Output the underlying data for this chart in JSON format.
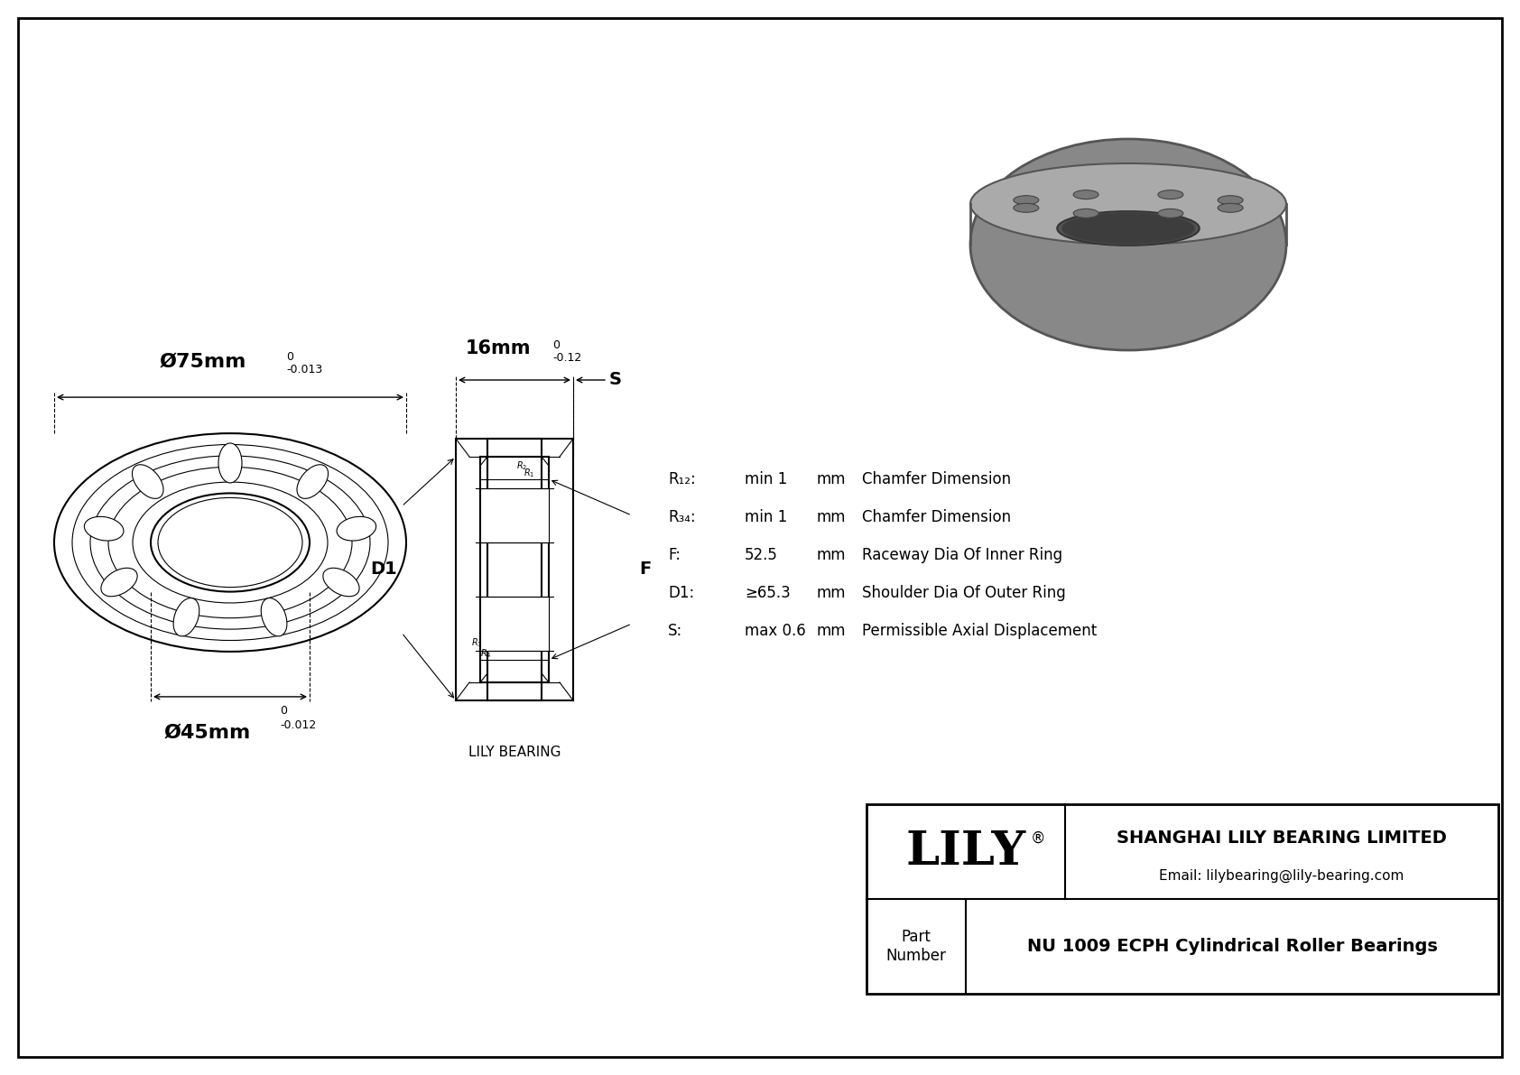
{
  "bg_color": "#f0f0f0",
  "drawing_bg": "#ffffff",
  "border_color": "#000000",
  "line_color": "#000000",
  "title_company": "SHANGHAI LILY BEARING LIMITED",
  "title_email": "Email: lilybearing@lily-bearing.com",
  "part_label": "Part\nNumber",
  "part_number": "NU 1009 ECPH Cylindrical Roller Bearings",
  "brand": "LILY",
  "brand_symbol": "®",
  "dim_outer": "Ø75mm",
  "dim_outer_tol_upper": "0",
  "dim_outer_tol_lower": "-0.013",
  "dim_inner": "Ø45mm",
  "dim_inner_tol_upper": "0",
  "dim_inner_tol_lower": "-0.012",
  "dim_width": "16mm",
  "dim_width_tol_upper": "0",
  "dim_width_tol_lower": "-0.12",
  "label_S": "S",
  "label_D1": "D1",
  "label_F": "F",
  "label_R12": "R₁₂:",
  "label_R34": "R₃₄:",
  "label_F_col": "F:",
  "label_D1_col": "D1:",
  "label_S_col": "S:",
  "val_R12": "min 1",
  "val_R34": "min 1",
  "val_F": "52.5",
  "val_D1": "≥65.3",
  "val_S": "max 0.6",
  "unit_mm": "mm",
  "desc_R12": "Chamfer Dimension",
  "desc_R34": "Chamfer Dimension",
  "desc_F": "Raceway Dia Of Inner Ring",
  "desc_D1": "Shoulder Dia Of Outer Ring",
  "desc_S": "Permissible Axial Displacement",
  "lily_bearing_label": "LILY BEARING"
}
